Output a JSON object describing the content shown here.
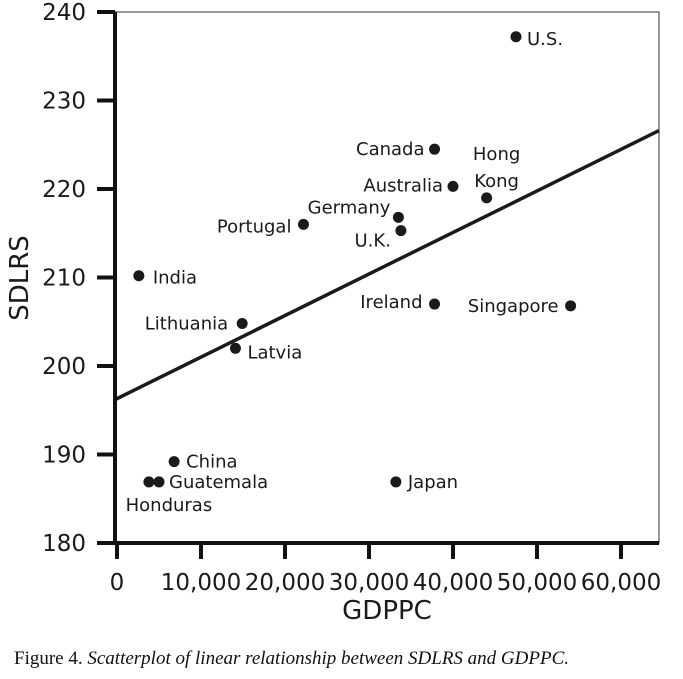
{
  "chart_data": {
    "type": "scatter",
    "xlabel": "GDPPC",
    "ylabel": "SDLRS",
    "xlim": [
      0,
      65000
    ],
    "ylim": [
      180,
      240
    ],
    "x_ticks": [
      0,
      10000,
      20000,
      30000,
      40000,
      50000,
      60000
    ],
    "x_tick_labels": [
      "0",
      "10,000",
      "20,000",
      "30,000",
      "40,000",
      "50,000",
      "60,000"
    ],
    "y_ticks": [
      180,
      190,
      200,
      210,
      220,
      230,
      240
    ],
    "y_tick_labels": [
      "180",
      "190",
      "200",
      "210",
      "220",
      "230",
      "240"
    ],
    "grid": false,
    "legend": "none",
    "points": [
      {
        "label": "U.S.",
        "x": 47500,
        "y": 237.2
      },
      {
        "label": "Canada",
        "x": 37800,
        "y": 224.5
      },
      {
        "label": "Hong Kong",
        "x": 44000,
        "y": 219.0
      },
      {
        "label": "Australia",
        "x": 40000,
        "y": 220.3
      },
      {
        "label": "Germany",
        "x": 33500,
        "y": 216.8
      },
      {
        "label": "U.K.",
        "x": 33800,
        "y": 215.3
      },
      {
        "label": "Portugal",
        "x": 22200,
        "y": 216.0
      },
      {
        "label": "India",
        "x": 2600,
        "y": 210.2
      },
      {
        "label": "Lithuania",
        "x": 14900,
        "y": 204.8
      },
      {
        "label": "Latvia",
        "x": 14100,
        "y": 202.0
      },
      {
        "label": "Ireland",
        "x": 37800,
        "y": 207.0
      },
      {
        "label": "Singapore",
        "x": 54000,
        "y": 206.8
      },
      {
        "label": "China",
        "x": 6800,
        "y": 189.2
      },
      {
        "label": "Guatemala",
        "x": 5000,
        "y": 186.9
      },
      {
        "label": "Honduras",
        "x": 3800,
        "y": 186.9
      },
      {
        "label": "Japan",
        "x": 33200,
        "y": 186.9
      }
    ],
    "fit_line": {
      "x": [
        0,
        65000
      ],
      "y": [
        196.2,
        226.6
      ]
    }
  },
  "caption": {
    "figure": "Figure 4.",
    "text": "Scatterplot of linear relationship between SDLRS and GDPPC."
  },
  "colors": {
    "points": "#1a1a1a",
    "line": "#1a1a1a",
    "plot_border": "#333333"
  }
}
